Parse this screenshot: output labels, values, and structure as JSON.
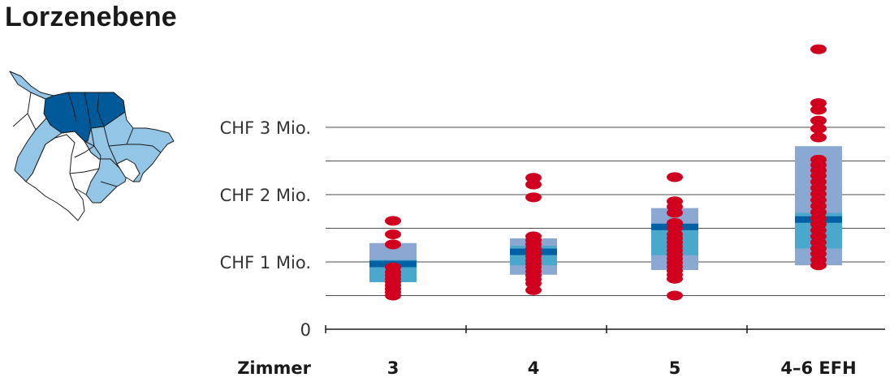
{
  "title": "Lorzenebene",
  "colors": {
    "map_light": "#93c6e6",
    "map_dark": "#005a9a",
    "box_outer": "#8aa8d2",
    "box_inner": "#4aa8cc",
    "median": "#0060a4",
    "dot": "#d0001e",
    "grid": "#4d4d4d"
  },
  "chart_data": {
    "type": "box-strip",
    "title": "",
    "xlabel": "Zimmer",
    "ylabel": "",
    "ylim": [
      0,
      4.2
    ],
    "grid": true,
    "yticks": [
      {
        "value": 0,
        "label": "0"
      },
      {
        "value": 1,
        "label": "CHF 1 Mio."
      },
      {
        "value": 2,
        "label": "CHF 2 Mio."
      },
      {
        "value": 3,
        "label": "CHF 3 Mio."
      }
    ],
    "categories": [
      "3",
      "4",
      "5",
      "4–6 EFH"
    ],
    "boxes": [
      {
        "category": "3",
        "q10": 0.7,
        "q25": 0.7,
        "median": 0.97,
        "q75": 1.03,
        "q90": 1.28
      },
      {
        "category": "4",
        "q10": 0.81,
        "q25": 0.95,
        "median": 1.15,
        "q75": 1.24,
        "q90": 1.35
      },
      {
        "category": "5",
        "q10": 0.88,
        "q25": 1.1,
        "median": 1.52,
        "q75": 1.57,
        "q90": 1.8
      },
      {
        "category": "4–6 EFH",
        "q10": 0.95,
        "q25": 1.2,
        "median": 1.63,
        "q75": 1.73,
        "q90": 2.72
      }
    ],
    "points": [
      {
        "category": "3",
        "values": [
          1.61,
          1.41,
          1.26,
          0.92,
          0.85,
          0.8,
          0.75,
          0.7,
          0.65,
          0.6,
          0.55,
          0.5
        ]
      },
      {
        "category": "4",
        "values": [
          2.25,
          2.15,
          1.96,
          1.38,
          1.32,
          1.26,
          1.2,
          1.14,
          1.08,
          1.02,
          0.97,
          0.92,
          0.86,
          0.8,
          0.74,
          0.68,
          0.58
        ]
      },
      {
        "category": "5",
        "values": [
          2.26,
          1.9,
          1.82,
          1.73,
          1.58,
          1.5,
          1.41,
          1.35,
          1.29,
          1.23,
          1.17,
          1.11,
          1.05,
          0.99,
          0.93,
          0.87,
          0.81,
          0.75,
          0.5
        ]
      },
      {
        "category": "4–6 EFH",
        "values": [
          4.16,
          3.36,
          3.26,
          3.1,
          2.98,
          2.85,
          2.52,
          2.44,
          2.36,
          2.28,
          2.19,
          2.1,
          2.01,
          1.92,
          1.83,
          1.74,
          1.65,
          1.56,
          1.47,
          1.38,
          1.29,
          1.2,
          1.12,
          1.03,
          0.95
        ]
      }
    ]
  }
}
